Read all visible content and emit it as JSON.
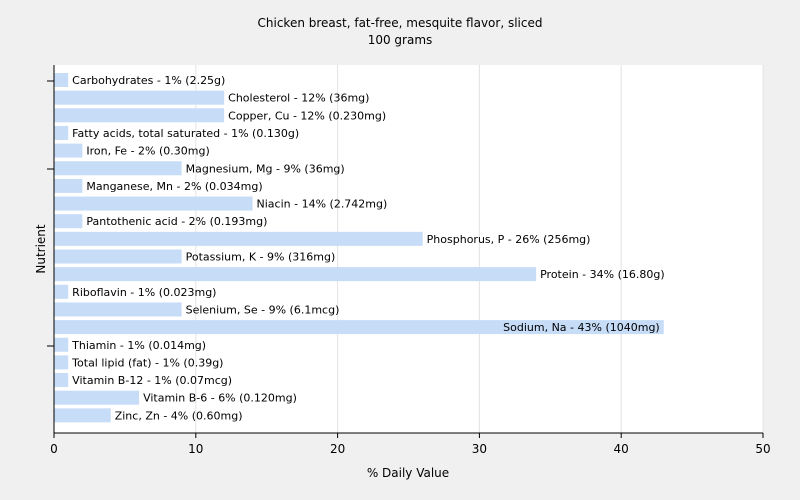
{
  "chart_data": {
    "type": "bar",
    "orientation": "horizontal",
    "title": "Chicken breast, fat-free, mesquite flavor, sliced",
    "subtitle": "100 grams",
    "xlabel": "% Daily Value",
    "ylabel": "Nutrient",
    "xlim": [
      0,
      50
    ],
    "xticks": [
      0,
      10,
      20,
      30,
      40,
      50
    ],
    "grid": true,
    "bar_color": "#c6dcf7",
    "background_color": "#f0f0f0",
    "plot_background": "#ffffff",
    "categories": [
      "Carbohydrates",
      "Cholesterol",
      "Copper, Cu",
      "Fatty acids, total saturated",
      "Iron, Fe",
      "Magnesium, Mg",
      "Manganese, Mn",
      "Niacin",
      "Pantothenic acid",
      "Phosphorus, P",
      "Potassium, K",
      "Protein",
      "Riboflavin",
      "Selenium, Se",
      "Sodium, Na",
      "Thiamin",
      "Total lipid (fat)",
      "Vitamin B-12",
      "Vitamin B-6",
      "Zinc, Zn"
    ],
    "values": [
      1,
      12,
      12,
      1,
      2,
      9,
      2,
      14,
      2,
      26,
      9,
      34,
      1,
      9,
      43,
      1,
      1,
      1,
      6,
      4
    ],
    "labels": [
      "Carbohydrates - 1% (2.25g)",
      "Cholesterol - 12% (36mg)",
      "Copper, Cu - 12% (0.230mg)",
      "Fatty acids, total saturated - 1% (0.130g)",
      "Iron, Fe - 2% (0.30mg)",
      "Magnesium, Mg - 9% (36mg)",
      "Manganese, Mn - 2% (0.034mg)",
      "Niacin - 14% (2.742mg)",
      "Pantothenic acid - 2% (0.193mg)",
      "Phosphorus, P - 26% (256mg)",
      "Potassium, K - 9% (316mg)",
      "Protein - 34% (16.80g)",
      "Riboflavin - 1% (0.023mg)",
      "Selenium, Se - 9% (6.1mcg)",
      "Sodium, Na - 43% (1040mg)",
      "Thiamin - 1% (0.014mg)",
      "Total lipid (fat) - 1% (0.39g)",
      "Vitamin B-12 - 1% (0.07mcg)",
      "Vitamin B-6 - 6% (0.120mg)",
      "Zinc, Zn - 4% (0.60mg)"
    ]
  }
}
